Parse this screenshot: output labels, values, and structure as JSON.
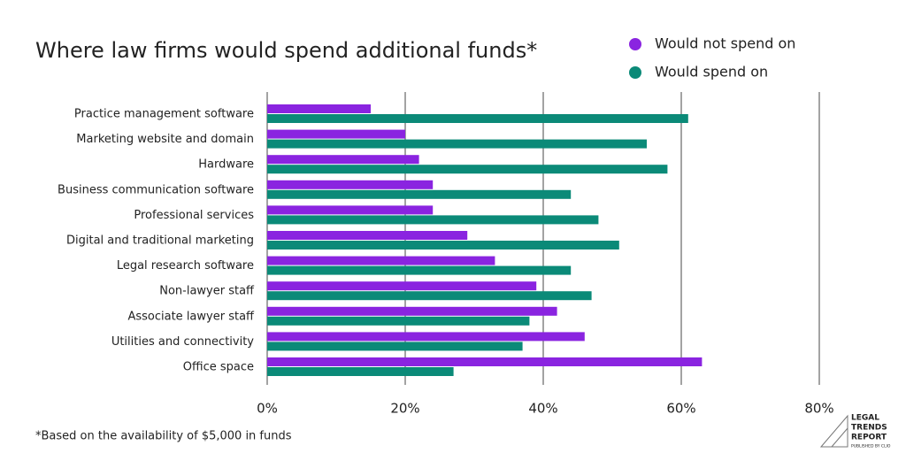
{
  "chart_data": {
    "type": "bar",
    "orientation": "horizontal",
    "title": "Where law firms would spend additional funds*",
    "categories": [
      "Practice management software",
      "Marketing website and domain",
      "Hardware",
      "Business communication software",
      "Professional services",
      "Digital and traditional marketing",
      "Legal research software",
      "Non-lawyer staff",
      "Associate lawyer staff",
      "Utilities and connectivity",
      "Office space"
    ],
    "series": [
      {
        "name": "Would not spend on",
        "color": "#8a24e0",
        "values": [
          15,
          20,
          22,
          24,
          24,
          29,
          33,
          39,
          42,
          46,
          63
        ]
      },
      {
        "name": "Would spend on",
        "color": "#0b8a78",
        "values": [
          61,
          55,
          58,
          44,
          48,
          51,
          44,
          47,
          38,
          37,
          27
        ]
      }
    ],
    "xlim": [
      0,
      80
    ],
    "xticks": [
      {
        "value": 0,
        "label": "0%"
      },
      {
        "value": 20,
        "label": "20%"
      },
      {
        "value": 40,
        "label": "40%"
      },
      {
        "value": 60,
        "label": "60%"
      },
      {
        "value": 80,
        "label": "80%"
      }
    ],
    "grid": true,
    "legend": "top-right",
    "footnote": "*Based on the availability of $5,000 in funds"
  },
  "logo": {
    "lines": [
      "LEGAL",
      "TRENDS",
      "REPORT"
    ],
    "byline": "PUBLISHED BY CLIO"
  }
}
